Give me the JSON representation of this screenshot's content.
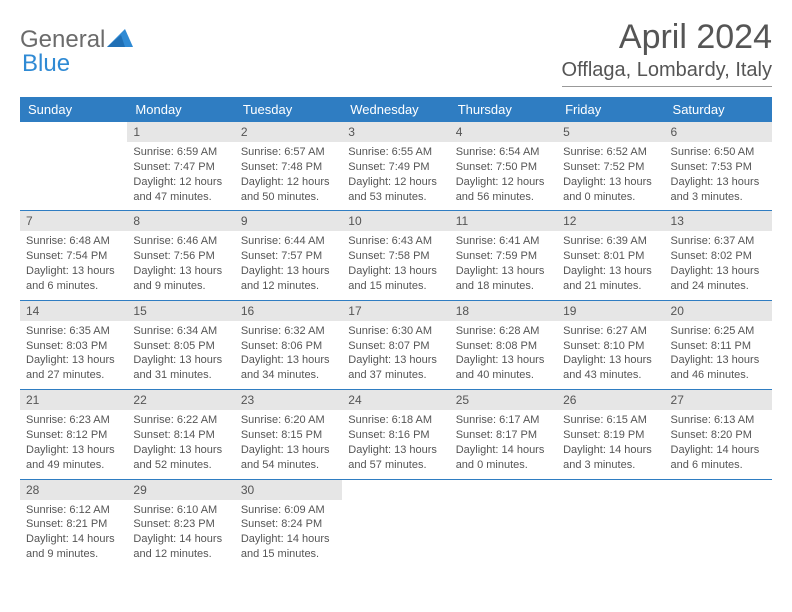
{
  "brand": {
    "part1": "General",
    "part2": "Blue"
  },
  "colors": {
    "header_bg": "#2f7dc2",
    "header_text": "#ffffff",
    "daynum_bg": "#e6e6e6",
    "text": "#555555",
    "logo_gray": "#6b6b6b",
    "logo_blue": "#2f8ad4",
    "rule": "#2f7dc2"
  },
  "title": "April 2024",
  "location": "Offlaga, Lombardy, Italy",
  "weekdays": [
    "Sunday",
    "Monday",
    "Tuesday",
    "Wednesday",
    "Thursday",
    "Friday",
    "Saturday"
  ],
  "weeks": [
    [
      null,
      {
        "n": "1",
        "sunrise": "6:59 AM",
        "sunset": "7:47 PM",
        "daylight": "12 hours and 47 minutes."
      },
      {
        "n": "2",
        "sunrise": "6:57 AM",
        "sunset": "7:48 PM",
        "daylight": "12 hours and 50 minutes."
      },
      {
        "n": "3",
        "sunrise": "6:55 AM",
        "sunset": "7:49 PM",
        "daylight": "12 hours and 53 minutes."
      },
      {
        "n": "4",
        "sunrise": "6:54 AM",
        "sunset": "7:50 PM",
        "daylight": "12 hours and 56 minutes."
      },
      {
        "n": "5",
        "sunrise": "6:52 AM",
        "sunset": "7:52 PM",
        "daylight": "13 hours and 0 minutes."
      },
      {
        "n": "6",
        "sunrise": "6:50 AM",
        "sunset": "7:53 PM",
        "daylight": "13 hours and 3 minutes."
      }
    ],
    [
      {
        "n": "7",
        "sunrise": "6:48 AM",
        "sunset": "7:54 PM",
        "daylight": "13 hours and 6 minutes."
      },
      {
        "n": "8",
        "sunrise": "6:46 AM",
        "sunset": "7:56 PM",
        "daylight": "13 hours and 9 minutes."
      },
      {
        "n": "9",
        "sunrise": "6:44 AM",
        "sunset": "7:57 PM",
        "daylight": "13 hours and 12 minutes."
      },
      {
        "n": "10",
        "sunrise": "6:43 AM",
        "sunset": "7:58 PM",
        "daylight": "13 hours and 15 minutes."
      },
      {
        "n": "11",
        "sunrise": "6:41 AM",
        "sunset": "7:59 PM",
        "daylight": "13 hours and 18 minutes."
      },
      {
        "n": "12",
        "sunrise": "6:39 AM",
        "sunset": "8:01 PM",
        "daylight": "13 hours and 21 minutes."
      },
      {
        "n": "13",
        "sunrise": "6:37 AM",
        "sunset": "8:02 PM",
        "daylight": "13 hours and 24 minutes."
      }
    ],
    [
      {
        "n": "14",
        "sunrise": "6:35 AM",
        "sunset": "8:03 PM",
        "daylight": "13 hours and 27 minutes."
      },
      {
        "n": "15",
        "sunrise": "6:34 AM",
        "sunset": "8:05 PM",
        "daylight": "13 hours and 31 minutes."
      },
      {
        "n": "16",
        "sunrise": "6:32 AM",
        "sunset": "8:06 PM",
        "daylight": "13 hours and 34 minutes."
      },
      {
        "n": "17",
        "sunrise": "6:30 AM",
        "sunset": "8:07 PM",
        "daylight": "13 hours and 37 minutes."
      },
      {
        "n": "18",
        "sunrise": "6:28 AM",
        "sunset": "8:08 PM",
        "daylight": "13 hours and 40 minutes."
      },
      {
        "n": "19",
        "sunrise": "6:27 AM",
        "sunset": "8:10 PM",
        "daylight": "13 hours and 43 minutes."
      },
      {
        "n": "20",
        "sunrise": "6:25 AM",
        "sunset": "8:11 PM",
        "daylight": "13 hours and 46 minutes."
      }
    ],
    [
      {
        "n": "21",
        "sunrise": "6:23 AM",
        "sunset": "8:12 PM",
        "daylight": "13 hours and 49 minutes."
      },
      {
        "n": "22",
        "sunrise": "6:22 AM",
        "sunset": "8:14 PM",
        "daylight": "13 hours and 52 minutes."
      },
      {
        "n": "23",
        "sunrise": "6:20 AM",
        "sunset": "8:15 PM",
        "daylight": "13 hours and 54 minutes."
      },
      {
        "n": "24",
        "sunrise": "6:18 AM",
        "sunset": "8:16 PM",
        "daylight": "13 hours and 57 minutes."
      },
      {
        "n": "25",
        "sunrise": "6:17 AM",
        "sunset": "8:17 PM",
        "daylight": "14 hours and 0 minutes."
      },
      {
        "n": "26",
        "sunrise": "6:15 AM",
        "sunset": "8:19 PM",
        "daylight": "14 hours and 3 minutes."
      },
      {
        "n": "27",
        "sunrise": "6:13 AM",
        "sunset": "8:20 PM",
        "daylight": "14 hours and 6 minutes."
      }
    ],
    [
      {
        "n": "28",
        "sunrise": "6:12 AM",
        "sunset": "8:21 PM",
        "daylight": "14 hours and 9 minutes."
      },
      {
        "n": "29",
        "sunrise": "6:10 AM",
        "sunset": "8:23 PM",
        "daylight": "14 hours and 12 minutes."
      },
      {
        "n": "30",
        "sunrise": "6:09 AM",
        "sunset": "8:24 PM",
        "daylight": "14 hours and 15 minutes."
      },
      null,
      null,
      null,
      null
    ]
  ],
  "labels": {
    "sunrise": "Sunrise: ",
    "sunset": "Sunset: ",
    "daylight": "Daylight: "
  }
}
